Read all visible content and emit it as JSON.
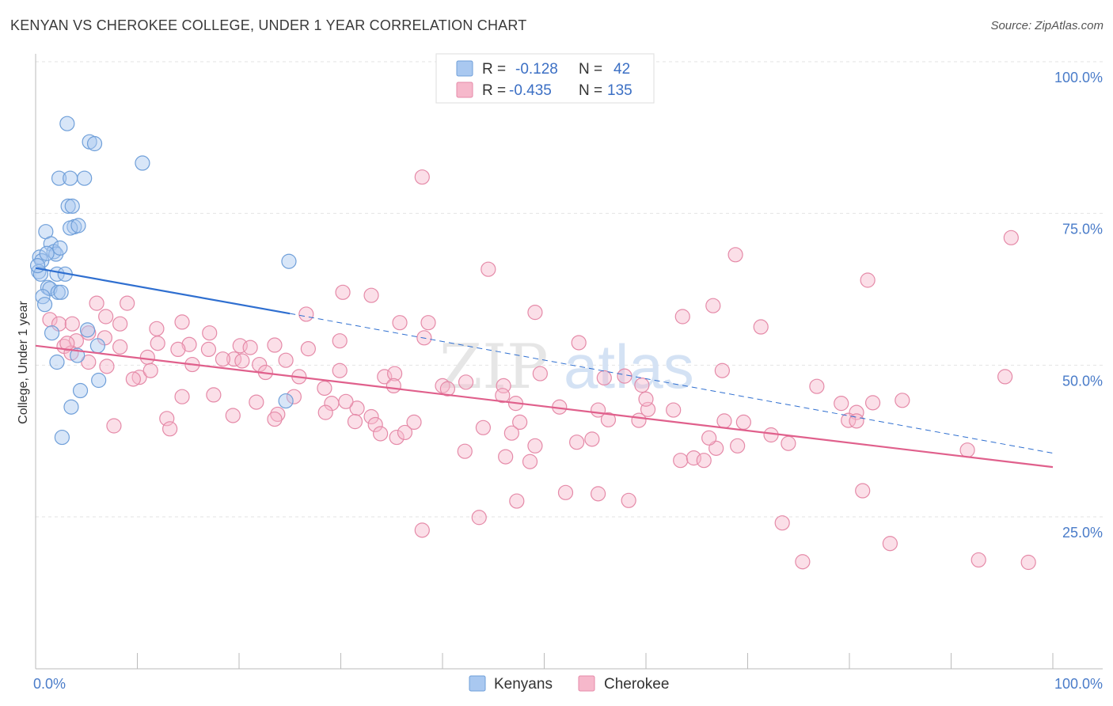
{
  "title": "KENYAN VS CHEROKEE COLLEGE, UNDER 1 YEAR CORRELATION CHART",
  "source": "Source: ZipAtlas.com",
  "watermark": {
    "zip": "ZIP",
    "atlas": "atlas"
  },
  "chart_data": {
    "type": "scatter",
    "title": "KENYAN VS CHEROKEE COLLEGE, UNDER 1 YEAR CORRELATION CHART",
    "xlabel": "",
    "ylabel": "College, Under 1 year",
    "xlim": [
      0,
      100
    ],
    "ylim": [
      0,
      105
    ],
    "x_tick_labels": [
      {
        "value": 0,
        "label": "0.0%"
      },
      {
        "value": 100,
        "label": "100.0%"
      }
    ],
    "y_tick_labels": [
      {
        "value": 25,
        "label": "25.0%"
      },
      {
        "value": 50,
        "label": "50.0%"
      },
      {
        "value": 75,
        "label": "75.0%"
      },
      {
        "value": 100,
        "label": "100.0%"
      }
    ],
    "grid": true,
    "legend_position": "top-center",
    "legend": [
      {
        "name": "Kenyans",
        "r_label": "R =",
        "r": "-0.128",
        "n_label": "N =",
        "n": "42",
        "color": "#a9c8f0",
        "stroke": "#6f9fd9"
      },
      {
        "name": "Cherokee",
        "r_label": "R =",
        "r": "-0.435",
        "n_label": "N =",
        "n": "135",
        "color": "#f6b8cb",
        "stroke": "#e58aa8"
      }
    ],
    "series": [
      {
        "name": "Kenyans",
        "color": "#a9c8f0",
        "stroke": "#6f9fd9",
        "trend": {
          "x0": 0,
          "y0": 66,
          "x1": 25,
          "y1": 58.5,
          "dash_x1": 100,
          "dash_y1": 35.5,
          "color": "#2f6fd0"
        },
        "points": [
          [
            3.1,
            89.8
          ],
          [
            5.3,
            86.8
          ],
          [
            5.8,
            86.5
          ],
          [
            10.5,
            83.3
          ],
          [
            2.3,
            80.8
          ],
          [
            3.4,
            80.8
          ],
          [
            4.8,
            80.8
          ],
          [
            3.2,
            76.2
          ],
          [
            3.6,
            76.2
          ],
          [
            3.8,
            72.8
          ],
          [
            3.4,
            72.6
          ],
          [
            4.2,
            73.0
          ],
          [
            1.0,
            72.0
          ],
          [
            1.5,
            70.0
          ],
          [
            1.8,
            68.7
          ],
          [
            2.0,
            68.3
          ],
          [
            2.4,
            69.3
          ],
          [
            0.4,
            67.8
          ],
          [
            0.6,
            67.2
          ],
          [
            1.1,
            68.4
          ],
          [
            0.3,
            65.4
          ],
          [
            0.5,
            65.0
          ],
          [
            2.1,
            65.0
          ],
          [
            2.9,
            65.0
          ],
          [
            1.2,
            62.8
          ],
          [
            1.4,
            62.6
          ],
          [
            2.2,
            62.0
          ],
          [
            2.5,
            62.0
          ],
          [
            0.7,
            61.3
          ],
          [
            24.9,
            67.1
          ],
          [
            5.1,
            55.8
          ],
          [
            6.1,
            53.2
          ],
          [
            4.1,
            51.6
          ],
          [
            2.1,
            50.5
          ],
          [
            6.2,
            47.5
          ],
          [
            4.4,
            45.8
          ],
          [
            3.5,
            43.1
          ],
          [
            24.6,
            44.1
          ],
          [
            2.6,
            38.1
          ],
          [
            0.9,
            60.0
          ],
          [
            1.6,
            55.3
          ],
          [
            0.2,
            66.4
          ]
        ]
      },
      {
        "name": "Cherokee",
        "color": "#f6b8cb",
        "stroke": "#e58aa8",
        "trend": {
          "x0": 0,
          "y0": 53.2,
          "x1": 100,
          "y1": 33.2,
          "color": "#e0608c"
        },
        "points": [
          [
            95.9,
            71.0
          ],
          [
            38.0,
            81.0
          ],
          [
            68.8,
            68.2
          ],
          [
            44.5,
            65.8
          ],
          [
            81.8,
            64.0
          ],
          [
            30.2,
            62.0
          ],
          [
            33.0,
            61.5
          ],
          [
            6.0,
            60.2
          ],
          [
            9.0,
            60.2
          ],
          [
            49.1,
            58.7
          ],
          [
            66.6,
            59.8
          ],
          [
            26.6,
            58.4
          ],
          [
            63.6,
            58.0
          ],
          [
            6.9,
            58.0
          ],
          [
            1.4,
            57.5
          ],
          [
            2.3,
            56.8
          ],
          [
            3.6,
            56.8
          ],
          [
            8.3,
            56.8
          ],
          [
            14.4,
            57.1
          ],
          [
            11.9,
            56.0
          ],
          [
            35.8,
            57.0
          ],
          [
            38.6,
            57.0
          ],
          [
            71.3,
            56.3
          ],
          [
            17.1,
            55.3
          ],
          [
            5.2,
            55.3
          ],
          [
            6.8,
            54.5
          ],
          [
            15.1,
            53.4
          ],
          [
            4.0,
            54.0
          ],
          [
            2.8,
            53.1
          ],
          [
            8.3,
            53.0
          ],
          [
            17.0,
            52.6
          ],
          [
            14.0,
            52.6
          ],
          [
            20.1,
            53.2
          ],
          [
            23.5,
            53.3
          ],
          [
            21.1,
            52.9
          ],
          [
            26.8,
            52.7
          ],
          [
            29.9,
            54.0
          ],
          [
            38.2,
            54.5
          ],
          [
            53.4,
            53.7
          ],
          [
            3.5,
            52.0
          ],
          [
            11.0,
            51.3
          ],
          [
            19.5,
            51.0
          ],
          [
            20.3,
            50.7
          ],
          [
            15.4,
            50.1
          ],
          [
            22.0,
            50.1
          ],
          [
            24.6,
            50.8
          ],
          [
            25.9,
            48.1
          ],
          [
            29.9,
            49.1
          ],
          [
            34.3,
            48.1
          ],
          [
            35.3,
            48.6
          ],
          [
            42.3,
            47.2
          ],
          [
            40.0,
            46.6
          ],
          [
            40.5,
            46.1
          ],
          [
            35.2,
            46.6
          ],
          [
            46.0,
            46.6
          ],
          [
            57.9,
            48.2
          ],
          [
            49.6,
            48.6
          ],
          [
            55.9,
            47.9
          ],
          [
            45.9,
            45.0
          ],
          [
            67.5,
            49.1
          ],
          [
            76.8,
            46.5
          ],
          [
            7.0,
            49.8
          ],
          [
            10.2,
            48.0
          ],
          [
            9.6,
            47.7
          ],
          [
            11.3,
            49.1
          ],
          [
            5.2,
            50.5
          ],
          [
            3.1,
            53.6
          ],
          [
            12.0,
            53.6
          ],
          [
            18.4,
            51.0
          ],
          [
            22.6,
            48.8
          ],
          [
            28.4,
            46.2
          ],
          [
            25.4,
            44.8
          ],
          [
            31.6,
            42.9
          ],
          [
            30.5,
            44.0
          ],
          [
            23.8,
            41.9
          ],
          [
            14.4,
            44.8
          ],
          [
            21.7,
            43.9
          ],
          [
            19.4,
            41.7
          ],
          [
            23.5,
            41.1
          ],
          [
            33.0,
            41.5
          ],
          [
            37.2,
            40.6
          ],
          [
            44.0,
            39.7
          ],
          [
            47.6,
            40.6
          ],
          [
            47.2,
            43.7
          ],
          [
            55.3,
            42.6
          ],
          [
            60.2,
            42.7
          ],
          [
            56.3,
            41.0
          ],
          [
            51.5,
            43.1
          ],
          [
            59.3,
            40.9
          ],
          [
            53.2,
            37.3
          ],
          [
            54.7,
            37.8
          ],
          [
            46.8,
            38.8
          ],
          [
            49.1,
            36.7
          ],
          [
            48.6,
            34.1
          ],
          [
            46.2,
            34.9
          ],
          [
            42.2,
            35.8
          ],
          [
            31.4,
            40.7
          ],
          [
            35.5,
            38.1
          ],
          [
            33.4,
            40.2
          ],
          [
            36.3,
            38.9
          ],
          [
            33.9,
            38.7
          ],
          [
            29.1,
            43.7
          ],
          [
            28.5,
            42.2
          ],
          [
            12.9,
            41.2
          ],
          [
            13.2,
            39.5
          ],
          [
            7.7,
            40.0
          ],
          [
            17.5,
            45.1
          ],
          [
            62.7,
            42.6
          ],
          [
            63.4,
            34.3
          ],
          [
            64.7,
            34.7
          ],
          [
            65.7,
            34.3
          ],
          [
            66.9,
            36.3
          ],
          [
            72.3,
            38.5
          ],
          [
            74.0,
            37.1
          ],
          [
            69.6,
            40.6
          ],
          [
            67.7,
            40.8
          ],
          [
            69.0,
            36.7
          ],
          [
            80.7,
            42.2
          ],
          [
            79.2,
            43.7
          ],
          [
            79.9,
            40.9
          ],
          [
            85.2,
            44.2
          ],
          [
            82.3,
            43.8
          ],
          [
            80.7,
            40.8
          ],
          [
            60.0,
            44.4
          ],
          [
            59.6,
            46.7
          ],
          [
            66.2,
            38.0
          ],
          [
            91.6,
            36.0
          ],
          [
            95.3,
            48.1
          ],
          [
            81.3,
            29.3
          ],
          [
            38.0,
            22.8
          ],
          [
            43.6,
            24.9
          ],
          [
            47.3,
            27.6
          ],
          [
            52.1,
            29.0
          ],
          [
            55.3,
            28.8
          ],
          [
            58.3,
            27.7
          ],
          [
            73.4,
            24.0
          ],
          [
            75.4,
            17.6
          ],
          [
            84.0,
            20.6
          ],
          [
            97.6,
            17.5
          ],
          [
            92.7,
            17.9
          ]
        ]
      }
    ]
  }
}
